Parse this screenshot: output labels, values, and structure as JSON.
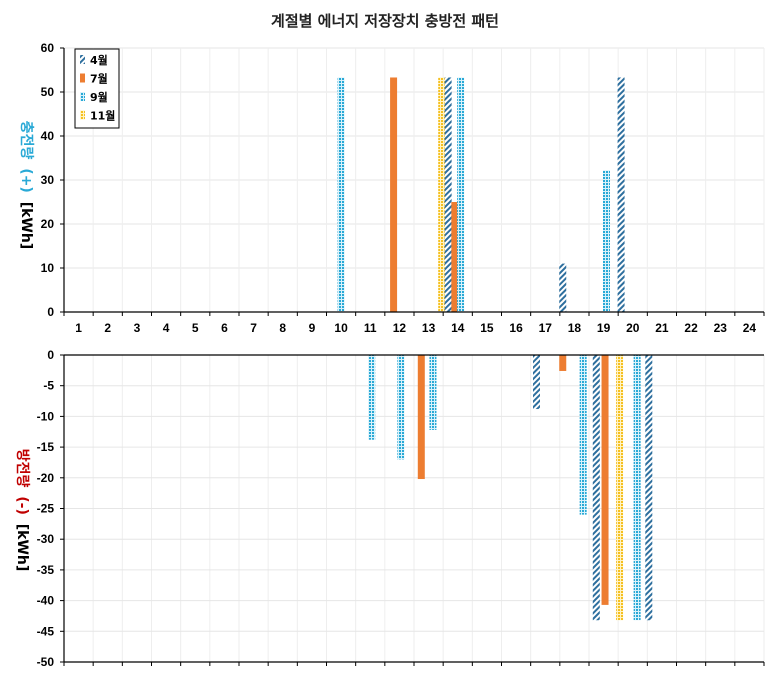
{
  "chart_data": {
    "type": "bar",
    "title": "계절별 에너지 저장장치 충방전 패턴",
    "categories": [
      "1",
      "2",
      "3",
      "4",
      "5",
      "6",
      "7",
      "8",
      "9",
      "10",
      "11",
      "12",
      "13",
      "14",
      "15",
      "16",
      "17",
      "18",
      "19",
      "20",
      "21",
      "22",
      "23",
      "24"
    ],
    "colors": {
      "4월": "#2e6f9e",
      "7월": "#ed7d31",
      "9월": "#29a9d6",
      "11월": "#f5c021"
    },
    "patterns": {
      "4월": "diagonal-hatch",
      "7월": "solid",
      "9월": "cross-hatch",
      "11월": "dense-dots"
    },
    "legend": {
      "entries": [
        "4월",
        "7월",
        "9월",
        "11월"
      ],
      "position": "top-left"
    },
    "grid": true,
    "top_panel": {
      "ylabel_main": "충전량",
      "ylabel_sign": "(+)",
      "ylabel_unit": "[kWh]",
      "ylabel_color": "#29a9d6",
      "ylim": [
        0,
        60
      ],
      "yticks": [
        "0",
        "10",
        "20",
        "30",
        "40",
        "50",
        "60"
      ],
      "bars": [
        {
          "series": "9월",
          "x": 10.0,
          "value": 53.3
        },
        {
          "series": "7월",
          "x": 11.8,
          "value": 53.3
        },
        {
          "series": "11월",
          "x": 13.45,
          "value": 53.3
        },
        {
          "series": "4월",
          "x": 13.67,
          "value": 53.3
        },
        {
          "series": "7월",
          "x": 13.9,
          "value": 25.0
        },
        {
          "series": "9월",
          "x": 14.1,
          "value": 53.3
        },
        {
          "series": "4월",
          "x": 17.6,
          "value": 11.0
        },
        {
          "series": "9월",
          "x": 19.1,
          "value": 32.2
        },
        {
          "series": "4월",
          "x": 19.6,
          "value": 53.3
        }
      ]
    },
    "bottom_panel": {
      "ylabel_main": "방전량",
      "ylabel_sign": "(-)",
      "ylabel_unit": "[kWh]",
      "ylabel_color": "#c00000",
      "ylim": [
        -50,
        0
      ],
      "yticks": [
        "0",
        "-5",
        "-10",
        "-15",
        "-20",
        "-25",
        "-30",
        "-35",
        "-40",
        "-45",
        "-50"
      ],
      "bars": [
        {
          "series": "9월",
          "x": 11.05,
          "value": -13.8
        },
        {
          "series": "9월",
          "x": 12.05,
          "value": -17.0
        },
        {
          "series": "7월",
          "x": 12.75,
          "value": -20.2
        },
        {
          "series": "9월",
          "x": 13.15,
          "value": -12.2
        },
        {
          "series": "4월",
          "x": 16.7,
          "value": -8.8
        },
        {
          "series": "7월",
          "x": 17.6,
          "value": -2.6
        },
        {
          "series": "9月",
          "x": 18.3,
          "value": -26.0
        },
        {
          "series": "4월",
          "x": 18.75,
          "value": -43.2
        },
        {
          "series": "7월",
          "x": 19.05,
          "value": -40.7
        },
        {
          "series": "11월",
          "x": 19.55,
          "value": -43.2
        },
        {
          "series": "9월",
          "x": 20.15,
          "value": -43.2
        },
        {
          "series": "4월",
          "x": 20.55,
          "value": -43.2
        }
      ]
    }
  }
}
